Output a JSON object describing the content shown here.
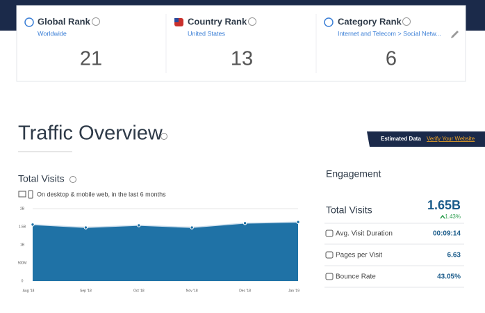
{
  "ranks": [
    {
      "title": "Global Rank",
      "subtitle": "Worldwide",
      "value": "21"
    },
    {
      "title": "Country Rank",
      "subtitle": "United States",
      "value": "13"
    },
    {
      "title": "Category Rank",
      "subtitle": "Internet and Telecom > Social Netw...",
      "value": "6"
    }
  ],
  "heading": "Traffic Overview",
  "badge": {
    "label": "Estimated Data",
    "link": "Verify Your Website"
  },
  "total_visits": {
    "title": "Total Visits",
    "note": "On desktop & mobile web, in the last 6 months",
    "chart": {
      "type": "area",
      "categories": [
        "Aug '18",
        "Sep '18",
        "Oct '18",
        "Nov '18",
        "Dec '18",
        "Jan '19"
      ],
      "values": [
        1.56,
        1.48,
        1.54,
        1.48,
        1.6,
        1.63
      ],
      "color": "#1f72a6",
      "ylim": [
        0,
        2
      ],
      "yticks": [
        0,
        {
          "value": 0.5,
          "label": "500M"
        },
        {
          "value": 1,
          "label": "1B"
        },
        {
          "value": 1.5,
          "label": "1.5B"
        },
        {
          "value": 2,
          "label": "2B"
        }
      ],
      "grid": true
    }
  },
  "engagement": {
    "title": "Engagement",
    "total": {
      "label": "Total Visits",
      "value": "1.65B",
      "change": "1.43%"
    },
    "rows": [
      {
        "label": "Avg. Visit Duration",
        "value": "00:09:14"
      },
      {
        "label": "Pages per Visit",
        "value": "6.63"
      },
      {
        "label": "Bounce Rate",
        "value": "43.05%"
      }
    ]
  }
}
